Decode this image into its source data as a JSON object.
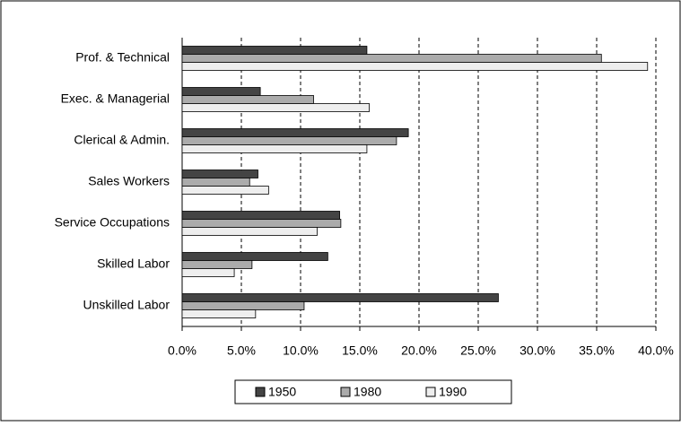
{
  "chart_data": {
    "type": "bar",
    "orientation": "horizontal",
    "categories": [
      "Prof. & Technical",
      "Exec. & Managerial",
      "Clerical & Admin.",
      "Sales Workers",
      "Service Occupations",
      "Skilled Labor",
      "Unskilled Labor"
    ],
    "series": [
      {
        "name": "1950",
        "color": "#444444",
        "values": [
          15.6,
          6.6,
          19.1,
          6.4,
          13.3,
          12.3,
          26.7
        ]
      },
      {
        "name": "1980",
        "color": "#ababab",
        "values": [
          35.4,
          11.1,
          18.1,
          5.7,
          13.4,
          5.9,
          10.3
        ]
      },
      {
        "name": "1990",
        "color": "#eeeeee",
        "values": [
          39.3,
          15.8,
          15.6,
          7.3,
          11.4,
          4.4,
          6.2
        ]
      }
    ],
    "xlim": [
      0,
      40
    ],
    "xticks": [
      {
        "value": 0,
        "label": "0.0%"
      },
      {
        "value": 5,
        "label": "5.0%"
      },
      {
        "value": 10,
        "label": "10.0%"
      },
      {
        "value": 15,
        "label": "15.0%"
      },
      {
        "value": 20,
        "label": "20.0%"
      },
      {
        "value": 25,
        "label": "25.0%"
      },
      {
        "value": 30,
        "label": "30.0%"
      },
      {
        "value": 35,
        "label": "35.0%"
      },
      {
        "value": 40,
        "label": "40.0%"
      }
    ],
    "grid": true,
    "legend": "bottom"
  }
}
